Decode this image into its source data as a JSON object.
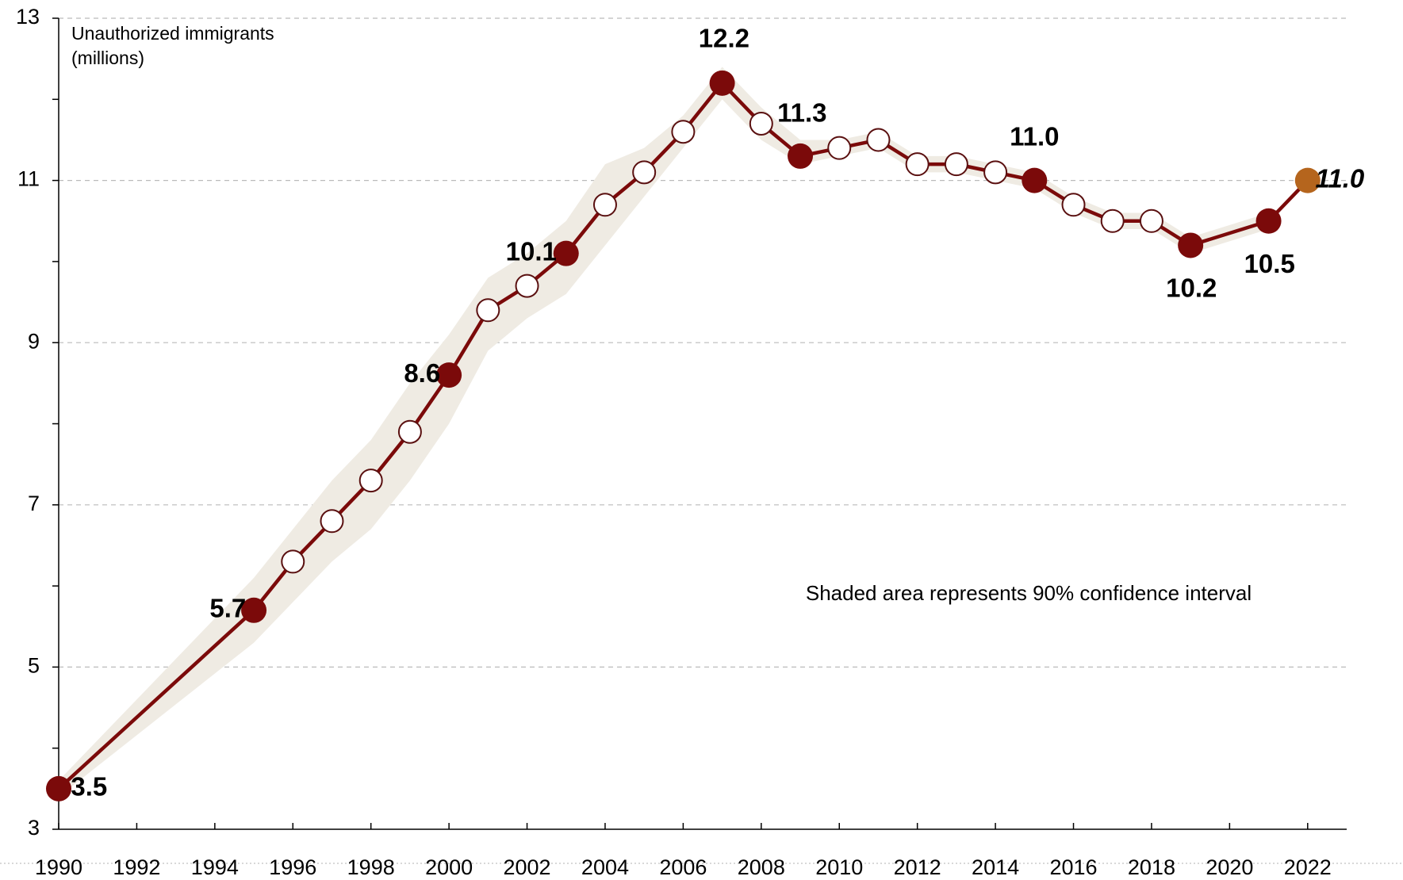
{
  "chart_data": {
    "type": "line",
    "ylabel": [
      "Unauthorized immigrants",
      "(millions)"
    ],
    "annotation": "Shaded area represents 90% confidence interval",
    "x": [
      1990,
      1995,
      1996,
      1997,
      1998,
      1999,
      2000,
      2001,
      2002,
      2003,
      2004,
      2005,
      2006,
      2007,
      2008,
      2009,
      2010,
      2011,
      2012,
      2013,
      2014,
      2015,
      2016,
      2017,
      2018,
      2019,
      2021,
      2022
    ],
    "series": [
      {
        "color": "#7b0a0a",
        "values": [
          3.5,
          5.7,
          6.3,
          6.8,
          7.3,
          7.9,
          8.6,
          9.4,
          9.7,
          10.1,
          10.7,
          11.1,
          11.6,
          12.2,
          11.7,
          11.3,
          11.4,
          11.5,
          11.2,
          11.2,
          11.1,
          11.0,
          10.7,
          10.5,
          10.5,
          10.2,
          10.5,
          11.0
        ],
        "value_labels": [
          "3.5",
          "5.7",
          null,
          null,
          null,
          null,
          "8.6",
          null,
          null,
          "10.1",
          null,
          null,
          null,
          "12.2",
          null,
          "11.3",
          null,
          null,
          null,
          null,
          null,
          "11.0",
          null,
          null,
          null,
          "10.2",
          "10.5",
          "11.0"
        ],
        "markers": [
          "filled",
          "filled",
          "open",
          "open",
          "open",
          "open",
          "filled",
          "open",
          "open",
          "filled",
          "open",
          "open",
          "open",
          "filled",
          "open",
          "filled",
          "open",
          "open",
          "open",
          "open",
          "open",
          "filled",
          "open",
          "open",
          "open",
          "filled",
          "filled",
          "estimate"
        ],
        "upper": [
          3.6,
          6.1,
          6.7,
          7.3,
          7.8,
          8.5,
          9.1,
          9.8,
          10.1,
          10.5,
          11.2,
          11.4,
          11.8,
          12.4,
          11.9,
          11.5,
          11.5,
          11.6,
          11.3,
          11.3,
          11.2,
          11.1,
          10.8,
          10.6,
          10.6,
          10.3,
          10.6,
          null
        ],
        "lower": [
          3.4,
          5.3,
          5.8,
          6.3,
          6.7,
          7.3,
          8.0,
          8.9,
          9.3,
          9.6,
          10.2,
          10.8,
          11.4,
          12.0,
          11.5,
          11.2,
          11.3,
          11.4,
          11.1,
          11.1,
          11.0,
          10.9,
          10.6,
          10.4,
          10.4,
          10.1,
          10.4,
          null
        ]
      }
    ],
    "marker_colors": {
      "filled": "#7b0a0a",
      "open": "#ffffff",
      "estimate": "#b5651d"
    },
    "band_color": "#efebe3",
    "xlim": [
      1990,
      2023
    ],
    "xticks": [
      1990,
      1992,
      1994,
      1996,
      1998,
      2000,
      2002,
      2004,
      2006,
      2008,
      2010,
      2012,
      2014,
      2016,
      2018,
      2020,
      2022
    ],
    "ylim": [
      3,
      13
    ],
    "yticks": [
      3,
      5,
      7,
      9,
      11,
      13
    ],
    "yminor_ticks": [
      4,
      6,
      8,
      10,
      12
    ],
    "grid": true
  }
}
